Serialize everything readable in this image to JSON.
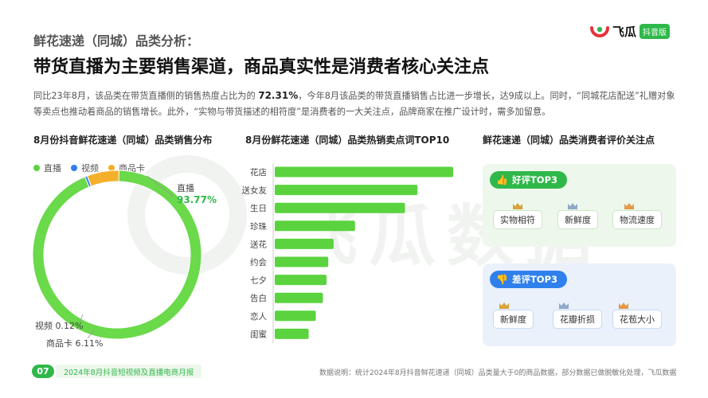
{
  "header": {
    "kicker": "鲜花速递（同城）品类分析：",
    "headline": "带货直播为主要销售渠道，商品真实性是消费者核心关注点",
    "logo_name": "飞瓜",
    "logo_badge": "抖音版"
  },
  "intro": {
    "part1": "同比23年8月，该品类在带货直播侧的销售热度占比为的 ",
    "highlight": "72.31%",
    "part2": "，今年8月该品类的带货直播销售占比进一步增长，达9成以上。同时，“同城花店配送”礼赠对象等卖点也推动着商品的销售增长。此外，“实物与带货描述的相符度”是消费者的一大关注点，品牌商家在推广设计时，需多加留意。"
  },
  "watermark": "飞瓜数据",
  "colors": {
    "green": "#2fb84a",
    "blue": "#2f80ed",
    "orange": "#f4b02a",
    "bar": "#5ad33f",
    "donut_green": "#6ad94a"
  },
  "panels": {
    "donut_title": "8月份抖音鲜花速递（同城）品类销售分布",
    "bar_title": "8月份鲜花速递（同城）品类热销卖点词TOP10",
    "review_title": "鲜花速递（同城）品类消费者评价关注点"
  },
  "chart_data": [
    {
      "type": "pie",
      "variant": "donut",
      "legend_position": "top-left",
      "categories": [
        "直播",
        "视频",
        "商品卡"
      ],
      "values": [
        93.77,
        0.12,
        6.11
      ],
      "unit": "%",
      "data_labels": [
        {
          "name": "直播",
          "value": "93.77%"
        },
        {
          "name": "视频",
          "value": "0.12%"
        },
        {
          "name": "商品卡",
          "value": "6.11%"
        }
      ]
    },
    {
      "type": "bar",
      "orientation": "horizontal",
      "categories": [
        "花店",
        "送女友",
        "生日",
        "珍珠",
        "送花",
        "约会",
        "七夕",
        "告白",
        "恋人",
        "闺蜜"
      ],
      "values": [
        100,
        80,
        73,
        45,
        33,
        30,
        29,
        27,
        23,
        19
      ],
      "value_scale": "relative (no axis printed)",
      "grid": false
    }
  ],
  "reviews": {
    "good": {
      "label": "好评TOP3",
      "tags": [
        "实物相符",
        "新鲜度",
        "物流速度"
      ]
    },
    "bad": {
      "label": "差评TOP3",
      "tags": [
        "新鲜度",
        "花瓣折损",
        "花苞大小"
      ]
    }
  },
  "footer": {
    "page_number": "07",
    "report_name": "2024年8月抖音短视频及直播电商月报",
    "note": "数据说明：统计2024年8月抖音鲜花速递（同城）品类量大于0的商品数据，部分数据已做脱敏化处理，飞瓜数据"
  }
}
